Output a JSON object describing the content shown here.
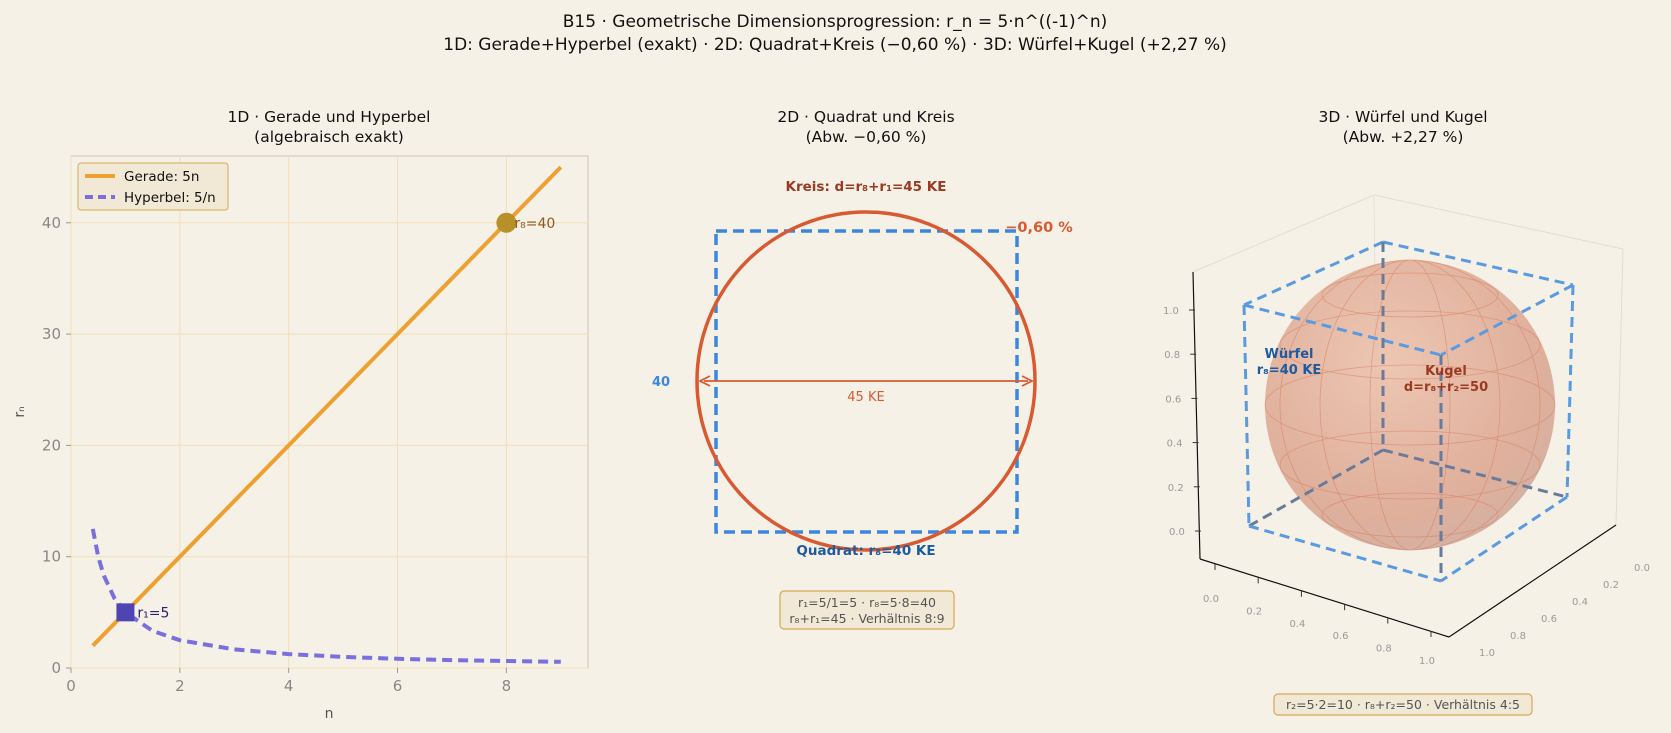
{
  "suptitle": {
    "line1": "B15 · Geometrische Dimensionsprogression: r_n = 5·n^((-1)^n)",
    "line2": "1D: Gerade+Hyperbel (exakt)  ·  2D: Quadrat+Kreis (−0,60 %)  ·  3D: Würfel+Kugel (+2,27 %)"
  },
  "colors": {
    "background": "#f6f1e7",
    "line_orange": "#eea030",
    "hyperbola_purple": "#7b6fdc",
    "square_blue": "#3a87dc",
    "circle_red": "#d85a32",
    "point_gold": "#b8902a",
    "point_purple": "#4f44b4",
    "sphere_fill": "#e0a890",
    "cube_blue": "#5a9ae0"
  },
  "panel1": {
    "title_line1": "1D · Gerade und Hyperbel",
    "title_line2": "(algebraisch exakt)",
    "xlabel": "n",
    "ylabel": "rₙ",
    "legend": {
      "items": [
        "Gerade: 5n",
        "Hyperbel: 5/n"
      ],
      "position": "top-left"
    },
    "points": [
      {
        "label": "r₈=40",
        "x": 8,
        "y": 40
      },
      {
        "label": "r₁=5",
        "x": 1,
        "y": 5
      }
    ],
    "chart_data": {
      "type": "line",
      "series": [
        {
          "name": "Gerade: 5n",
          "x": [
            0.4,
            9
          ],
          "y": [
            2,
            45
          ]
        },
        {
          "name": "Hyperbel: 5/n",
          "x": [
            0.4,
            0.5,
            0.6,
            0.8,
            1,
            1.5,
            2,
            3,
            4,
            5,
            6,
            7,
            8,
            9
          ],
          "y": [
            12.5,
            10,
            8.33,
            6.25,
            5,
            3.33,
            2.5,
            1.67,
            1.25,
            1,
            0.83,
            0.71,
            0.63,
            0.56
          ]
        }
      ],
      "xlim": [
        0,
        9.5
      ],
      "ylim": [
        0,
        46
      ],
      "xticks": [
        "0",
        "2",
        "4",
        "6",
        "8"
      ],
      "yticks": [
        "0",
        "10",
        "20",
        "30",
        "40"
      ],
      "grid": true
    }
  },
  "panel2": {
    "title_line1": "2D · Quadrat und Kreis",
    "title_line2": "(Abw. −0,60 %)",
    "circle_label": "Kreis: d=r₈+r₁=45 KE",
    "square_label": "Quadrat: r₈=40 KE",
    "deviation": "−0,60 %",
    "side_label": "40",
    "diameter_label": "45 KE",
    "info_line1": "r₁=5/1=5 · r₈=5·8=40",
    "info_line2": "r₈+r₁=45 · Verhältnis 8:9"
  },
  "panel3": {
    "title_line1": "3D · Würfel und Kugel",
    "title_line2": "(Abw. +2,27 %)",
    "cube_label_line1": "Würfel",
    "cube_label_line2": "r₈=40 KE",
    "sphere_label_line1": "Kugel",
    "sphere_label_line2": "d=r₈+r₂=50",
    "info": "r₂=5·2=10 · r₈+r₂=50 · Verhältnis 4:5",
    "z_ticks": [
      "0.0",
      "0.2",
      "0.4",
      "0.6",
      "0.8",
      "1.0"
    ],
    "x_ticks": [
      "0.0",
      "0.2",
      "0.4",
      "0.6",
      "0.8",
      "1.0"
    ],
    "y_ticks": [
      "0.0",
      "0.2",
      "0.4",
      "0.6",
      "0.8",
      "1.0"
    ]
  }
}
